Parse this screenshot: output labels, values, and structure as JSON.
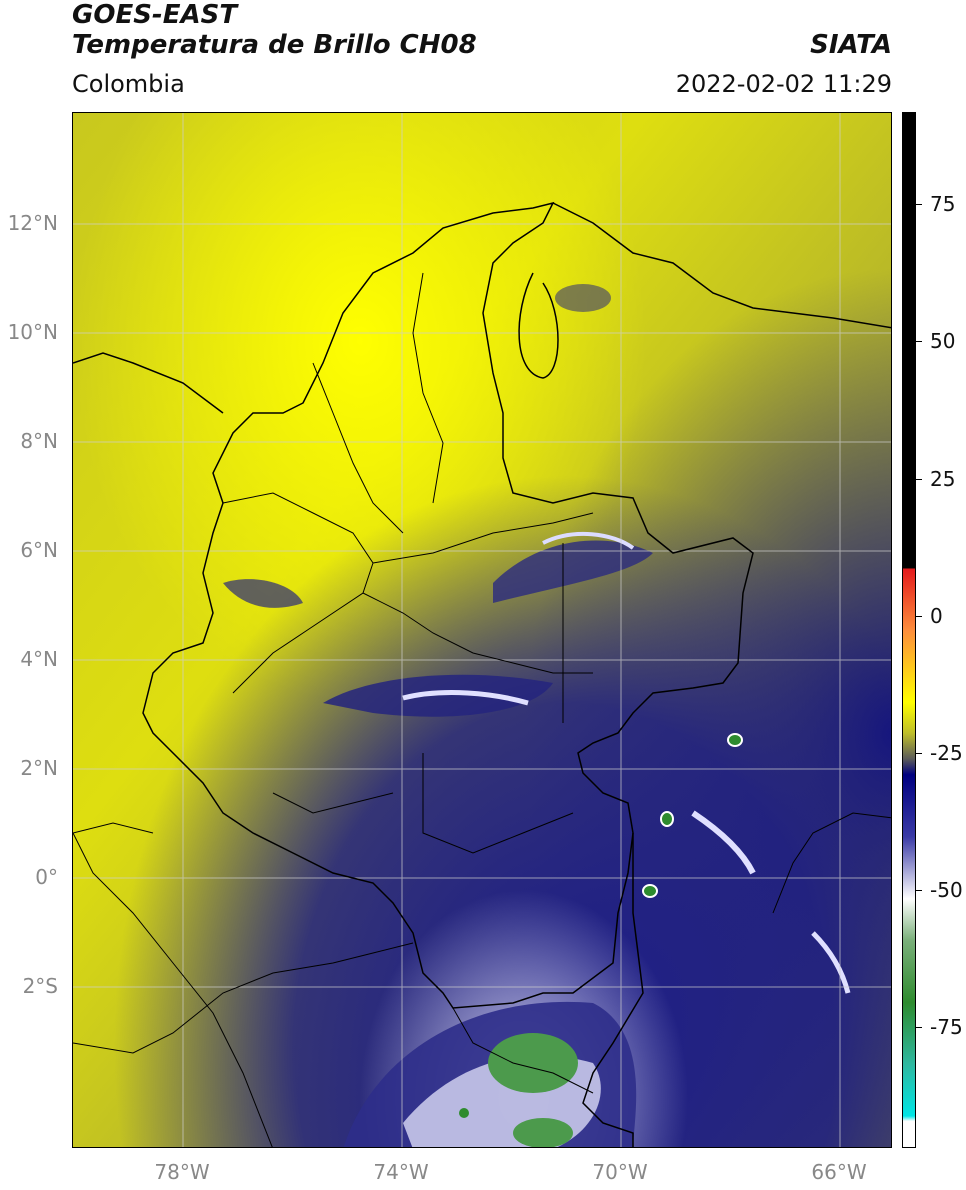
{
  "header": {
    "satellite": "GOES-EAST",
    "product": "Temperatura de Brillo CH08",
    "brand": "SIATA",
    "region": "Colombia",
    "datetime": "2022-02-02 11:29"
  },
  "axes": {
    "lat_labels": [
      "12°N",
      "10°N",
      "8°N",
      "6°N",
      "4°N",
      "2°N",
      "0°",
      "2°S"
    ],
    "lon_labels": [
      "78°W",
      "74°W",
      "70°W",
      "66°W"
    ]
  },
  "colorbar": {
    "ticks": [
      "75",
      "50",
      "25",
      "0",
      "-25",
      "-50",
      "-75"
    ],
    "colors": {
      "black": "#000000",
      "red": "#e31a1c",
      "orange": "#fd8d3c",
      "yellow": "#ffff00",
      "olive": "#8c8c2a",
      "navy": "#000080",
      "white": "#ffffff",
      "green": "#2e8b2e",
      "cyan": "#00e5e5"
    }
  }
}
